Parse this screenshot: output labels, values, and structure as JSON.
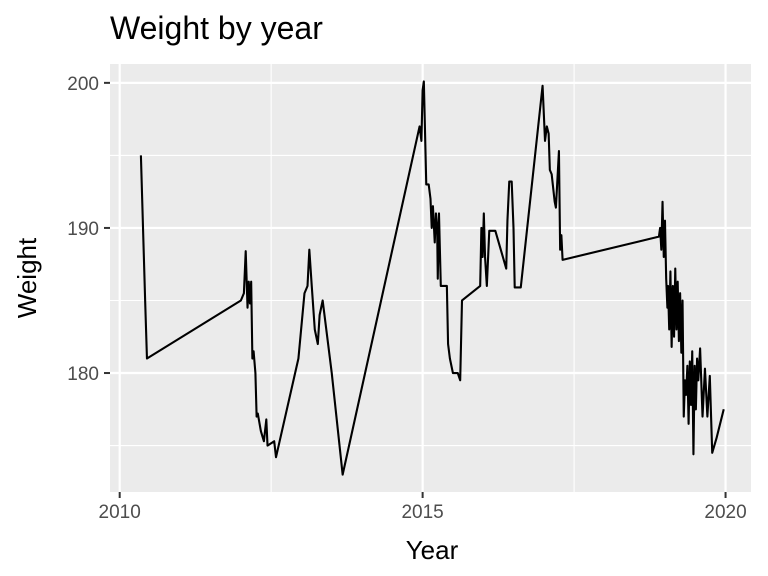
{
  "chart_data": {
    "type": "line",
    "title": "Weight by year",
    "xlabel": "Year",
    "ylabel": "Weight",
    "xlim": [
      2009.84,
      2020.42
    ],
    "ylim": [
      171.8,
      201.3
    ],
    "x_ticks": [
      2010,
      2015,
      2020
    ],
    "x_tick_labels": [
      "2010",
      "2015",
      "2020"
    ],
    "y_ticks": [
      180,
      190,
      200
    ],
    "y_tick_labels": [
      "180",
      "190",
      "200"
    ],
    "grid": true,
    "legend": "none",
    "colors": {
      "panel": "#ebebeb",
      "grid": "#ffffff",
      "line": "#000000",
      "tick": "#333333"
    },
    "series": [
      {
        "points": [
          [
            2010.35,
            195.0
          ],
          [
            2010.42,
            185.0
          ],
          [
            2010.45,
            181.0
          ],
          [
            2012.0,
            185.0
          ],
          [
            2012.05,
            185.5
          ],
          [
            2012.08,
            188.4
          ],
          [
            2012.11,
            184.5
          ],
          [
            2012.13,
            186.3
          ],
          [
            2012.15,
            184.8
          ],
          [
            2012.17,
            186.3
          ],
          [
            2012.19,
            181.0
          ],
          [
            2012.21,
            181.5
          ],
          [
            2012.24,
            180.0
          ],
          [
            2012.26,
            177.0
          ],
          [
            2012.28,
            177.2
          ],
          [
            2012.33,
            176.0
          ],
          [
            2012.38,
            175.3
          ],
          [
            2012.42,
            176.8
          ],
          [
            2012.44,
            175.0
          ],
          [
            2012.55,
            175.3
          ],
          [
            2012.58,
            174.2
          ],
          [
            2012.95,
            181.0
          ],
          [
            2013.05,
            185.5
          ],
          [
            2013.1,
            186.0
          ],
          [
            2013.13,
            188.5
          ],
          [
            2013.17,
            186.0
          ],
          [
            2013.22,
            183.0
          ],
          [
            2013.27,
            182.0
          ],
          [
            2013.3,
            184.0
          ],
          [
            2013.35,
            185.0
          ],
          [
            2013.5,
            180.0
          ],
          [
            2013.68,
            173.0
          ],
          [
            2014.95,
            197.0
          ],
          [
            2014.98,
            196.0
          ],
          [
            2015.0,
            199.5
          ],
          [
            2015.02,
            200.1
          ],
          [
            2015.06,
            193.0
          ],
          [
            2015.1,
            193.0
          ],
          [
            2015.13,
            192.0
          ],
          [
            2015.15,
            190.0
          ],
          [
            2015.17,
            191.5
          ],
          [
            2015.2,
            189.0
          ],
          [
            2015.22,
            191.0
          ],
          [
            2015.24,
            190.0
          ],
          [
            2015.25,
            186.5
          ],
          [
            2015.27,
            191.0
          ],
          [
            2015.3,
            186.0
          ],
          [
            2015.4,
            186.0
          ],
          [
            2015.42,
            182.0
          ],
          [
            2015.45,
            181.0
          ],
          [
            2015.5,
            180.0
          ],
          [
            2015.58,
            180.0
          ],
          [
            2015.62,
            179.5
          ],
          [
            2015.65,
            185.0
          ],
          [
            2015.95,
            186.0
          ],
          [
            2015.97,
            190.0
          ],
          [
            2015.99,
            188.0
          ],
          [
            2016.01,
            191.0
          ],
          [
            2016.03,
            188.0
          ],
          [
            2016.06,
            186.0
          ],
          [
            2016.1,
            189.8
          ],
          [
            2016.2,
            189.8
          ],
          [
            2016.38,
            187.2
          ],
          [
            2016.4,
            190.5
          ],
          [
            2016.43,
            193.2
          ],
          [
            2016.47,
            193.2
          ],
          [
            2016.5,
            190.0
          ],
          [
            2016.52,
            185.9
          ],
          [
            2016.62,
            185.9
          ],
          [
            2016.98,
            199.8
          ],
          [
            2017.02,
            196.0
          ],
          [
            2017.05,
            197.0
          ],
          [
            2017.08,
            196.5
          ],
          [
            2017.1,
            194.0
          ],
          [
            2017.13,
            193.7
          ],
          [
            2017.18,
            191.8
          ],
          [
            2017.2,
            191.4
          ],
          [
            2017.25,
            195.3
          ],
          [
            2017.27,
            188.5
          ],
          [
            2017.29,
            189.5
          ],
          [
            2017.31,
            187.8
          ],
          [
            2018.9,
            189.4
          ],
          [
            2018.92,
            190.0
          ],
          [
            2018.94,
            188.5
          ],
          [
            2018.96,
            191.8
          ],
          [
            2018.98,
            188.0
          ],
          [
            2019.0,
            190.5
          ],
          [
            2019.02,
            186.5
          ],
          [
            2019.04,
            184.5
          ],
          [
            2019.05,
            186.0
          ],
          [
            2019.07,
            183.0
          ],
          [
            2019.09,
            187.0
          ],
          [
            2019.11,
            181.8
          ],
          [
            2019.13,
            186.0
          ],
          [
            2019.15,
            182.5
          ],
          [
            2019.17,
            187.2
          ],
          [
            2019.19,
            183.0
          ],
          [
            2019.21,
            186.3
          ],
          [
            2019.23,
            182.2
          ],
          [
            2019.25,
            185.5
          ],
          [
            2019.27,
            181.4
          ],
          [
            2019.29,
            185.0
          ],
          [
            2019.31,
            177.0
          ],
          [
            2019.33,
            179.5
          ],
          [
            2019.35,
            178.5
          ],
          [
            2019.37,
            180.5
          ],
          [
            2019.39,
            176.5
          ],
          [
            2019.41,
            180.8
          ],
          [
            2019.43,
            177.8
          ],
          [
            2019.45,
            181.5
          ],
          [
            2019.47,
            174.4
          ],
          [
            2019.49,
            180.5
          ],
          [
            2019.51,
            177.5
          ],
          [
            2019.53,
            181.0
          ],
          [
            2019.55,
            179.5
          ],
          [
            2019.58,
            181.7
          ],
          [
            2019.62,
            177.0
          ],
          [
            2019.66,
            180.3
          ],
          [
            2019.7,
            177.0
          ],
          [
            2019.74,
            179.8
          ],
          [
            2019.78,
            174.5
          ],
          [
            2019.85,
            175.5
          ],
          [
            2019.97,
            177.5
          ]
        ]
      }
    ]
  }
}
